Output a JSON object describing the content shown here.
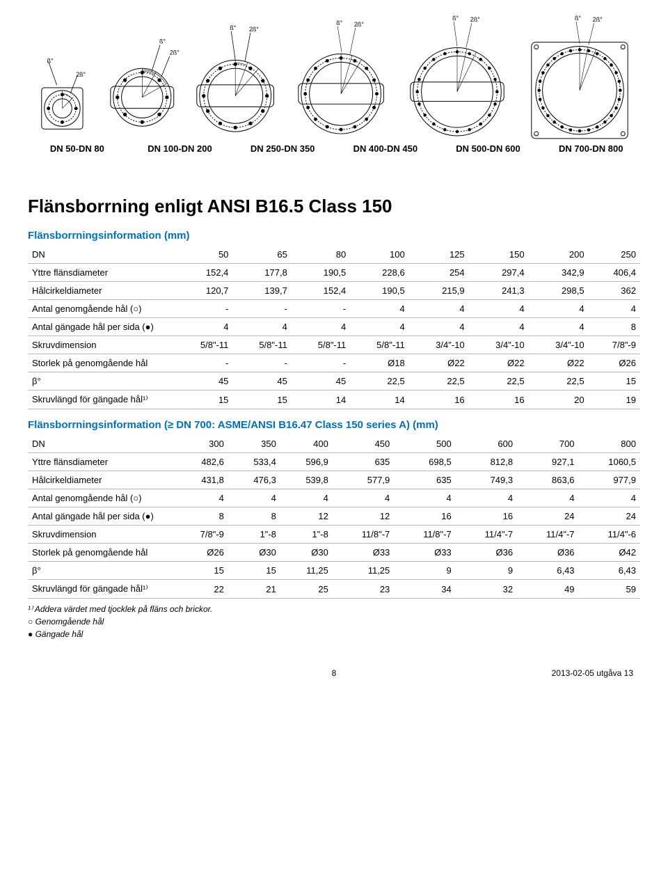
{
  "diagram_labels": {
    "beta": "ß°",
    "two_beta": "2ß°",
    "dn_labels": [
      "DN 50-DN 80",
      "DN 100-DN 200",
      "DN 250-DN 350",
      "DN 400-DN 450",
      "DN 500-DN 600",
      "DN 700-DN 800"
    ]
  },
  "diagram_style": {
    "stroke": "#000000",
    "fill": "none",
    "stroke_width": 1,
    "label_fontsize": 9
  },
  "title": "Flänsborrning enligt ANSI B16.5 Class 150",
  "subheading_color": "#0070b8",
  "table1": {
    "heading": "Flänsborrningsinformation (mm)",
    "columns": [
      "DN",
      "50",
      "65",
      "80",
      "100",
      "125",
      "150",
      "200",
      "250"
    ],
    "rows": [
      [
        "Yttre flänsdiameter",
        "152,4",
        "177,8",
        "190,5",
        "228,6",
        "254",
        "297,4",
        "342,9",
        "406,4"
      ],
      [
        "Hålcirkeldiameter",
        "120,7",
        "139,7",
        "152,4",
        "190,5",
        "215,9",
        "241,3",
        "298,5",
        "362"
      ],
      [
        "Antal genomgående hål (○)",
        "-",
        "-",
        "-",
        "4",
        "4",
        "4",
        "4",
        "4"
      ],
      [
        "Antal gängade hål per sida (●)",
        "4",
        "4",
        "4",
        "4",
        "4",
        "4",
        "4",
        "8"
      ],
      [
        "Skruvdimension",
        "5/8\"-11",
        "5/8\"-11",
        "5/8\"-11",
        "5/8\"-11",
        "3/4\"-10",
        "3/4\"-10",
        "3/4\"-10",
        "7/8\"-9"
      ],
      [
        "Storlek på genomgående hål",
        "-",
        "-",
        "-",
        "Ø18",
        "Ø22",
        "Ø22",
        "Ø22",
        "Ø26"
      ],
      [
        "β°",
        "45",
        "45",
        "45",
        "22,5",
        "22,5",
        "22,5",
        "22,5",
        "15"
      ],
      [
        "Skruvlängd för gängade hål¹⁾",
        "15",
        "15",
        "14",
        "14",
        "16",
        "16",
        "20",
        "19"
      ]
    ]
  },
  "table2": {
    "heading": "Flänsborrningsinformation (≥ DN 700: ASME/ANSI B16.47 Class 150 series A) (mm)",
    "columns": [
      "DN",
      "300",
      "350",
      "400",
      "450",
      "500",
      "600",
      "700",
      "800"
    ],
    "rows": [
      [
        "Yttre flänsdiameter",
        "482,6",
        "533,4",
        "596,9",
        "635",
        "698,5",
        "812,8",
        "927,1",
        "1060,5"
      ],
      [
        "Hålcirkeldiameter",
        "431,8",
        "476,3",
        "539,8",
        "577,9",
        "635",
        "749,3",
        "863,6",
        "977,9"
      ],
      [
        "Antal genomgående hål (○)",
        "4",
        "4",
        "4",
        "4",
        "4",
        "4",
        "4",
        "4"
      ],
      [
        "Antal gängade hål per sida (●)",
        "8",
        "8",
        "12",
        "12",
        "16",
        "16",
        "24",
        "24"
      ],
      [
        "Skruvdimension",
        "7/8\"-9",
        "1\"-8",
        "1\"-8",
        "11/8\"-7",
        "11/8\"-7",
        "11/4\"-7",
        "11/4\"-7",
        "11/4\"-6"
      ],
      [
        "Storlek på genomgående hål",
        "Ø26",
        "Ø30",
        "Ø30",
        "Ø33",
        "Ø33",
        "Ø36",
        "Ø36",
        "Ø42"
      ],
      [
        "β°",
        "15",
        "15",
        "11,25",
        "11,25",
        "9",
        "9",
        "6,43",
        "6,43"
      ],
      [
        "Skruvlängd för gängade hål¹⁾",
        "22",
        "21",
        "25",
        "23",
        "34",
        "32",
        "49",
        "59"
      ]
    ]
  },
  "footnotes": [
    "¹⁾ Addera värdet med tjocklek på fläns och brickor.",
    "○ Genomgående hål",
    "● Gängade hål"
  ],
  "footer": {
    "page_number": "8",
    "revision": "2013-02-05 utgåva 13"
  }
}
